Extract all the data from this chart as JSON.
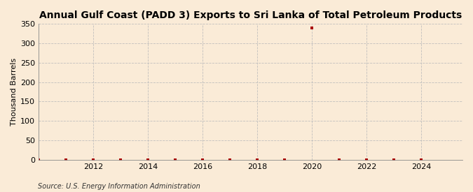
{
  "title": "Annual Gulf Coast (PADD 3) Exports to Sri Lanka of Total Petroleum Products",
  "ylabel": "Thousand Barrels",
  "source": "Source: U.S. Energy Information Administration",
  "background_color": "#faebd7",
  "years": [
    2010,
    2011,
    2012,
    2013,
    2014,
    2015,
    2016,
    2017,
    2018,
    2019,
    2020,
    2021,
    2022,
    2023,
    2024
  ],
  "values": [
    0,
    0,
    0,
    0,
    0,
    0,
    0,
    0,
    0,
    0,
    340,
    0,
    0,
    0,
    0
  ],
  "marker_color": "#aa0000",
  "xlim": [
    2010.0,
    2025.5
  ],
  "ylim": [
    0,
    350
  ],
  "yticks": [
    0,
    50,
    100,
    150,
    200,
    250,
    300,
    350
  ],
  "xticks": [
    2012,
    2014,
    2016,
    2018,
    2020,
    2022,
    2024
  ],
  "grid_color": "#bbbbbb",
  "title_fontsize": 10,
  "axis_fontsize": 8,
  "tick_fontsize": 8,
  "source_fontsize": 7
}
